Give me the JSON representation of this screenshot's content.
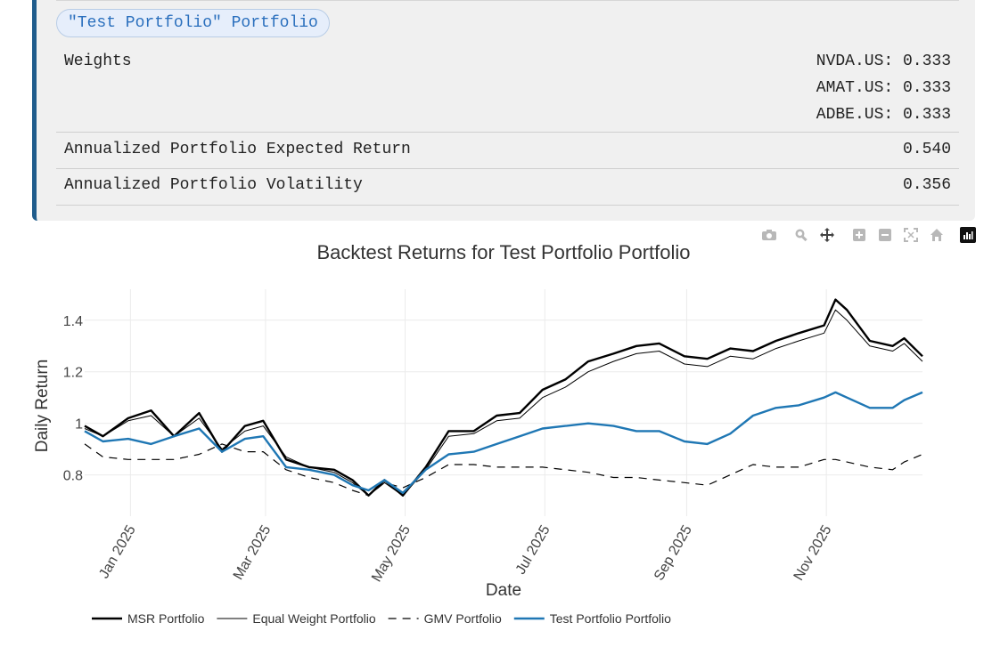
{
  "portfolio_card": {
    "name_badge": "\"Test Portfolio\" Portfolio",
    "weights_label": "Weights",
    "weights": [
      "NVDA.US: 0.333",
      "AMAT.US: 0.333",
      "ADBE.US: 0.333"
    ],
    "expected_return_label": "Annualized Portfolio Expected Return",
    "expected_return_value": "0.540",
    "volatility_label": "Annualized Portfolio Volatility",
    "volatility_value": "0.356"
  },
  "modebar_icons": [
    "camera-icon",
    "zoom-icon",
    "pan-icon",
    "zoom-in-icon",
    "zoom-out-icon",
    "autoscale-icon",
    "reset-axes-icon",
    "plotly-logo-icon"
  ],
  "chart_data": {
    "type": "line",
    "title": "Backtest Returns for Test Portfolio Portfolio",
    "xlabel": "Date",
    "ylabel": "Daily Return",
    "xticks": [
      "Jan 2025",
      "Mar 2025",
      "May 2025",
      "Jul 2025",
      "Sep 2025",
      "Nov 2025"
    ],
    "xtick_dates": [
      "2025-01-01",
      "2025-03-01",
      "2025-05-01",
      "2025-07-01",
      "2025-09-01",
      "2025-11-01"
    ],
    "xlim": [
      "2024-12-12",
      "2025-12-13"
    ],
    "yticks": [
      "0.8",
      "1",
      "1.2",
      "1.4"
    ],
    "ytick_values": [
      0.8,
      1.0,
      1.2,
      1.4
    ],
    "ylim": [
      0.64,
      1.52
    ],
    "grid": true,
    "legend_position": "bottom",
    "x": [
      "2024-12-12",
      "2024-12-20",
      "2024-12-31",
      "2025-01-10",
      "2025-01-20",
      "2025-01-31",
      "2025-02-10",
      "2025-02-20",
      "2025-02-28",
      "2025-03-10",
      "2025-03-20",
      "2025-03-31",
      "2025-04-08",
      "2025-04-15",
      "2025-04-22",
      "2025-04-30",
      "2025-05-10",
      "2025-05-20",
      "2025-05-31",
      "2025-06-10",
      "2025-06-20",
      "2025-06-30",
      "2025-07-10",
      "2025-07-20",
      "2025-07-31",
      "2025-08-10",
      "2025-08-20",
      "2025-08-31",
      "2025-09-10",
      "2025-09-20",
      "2025-09-30",
      "2025-10-10",
      "2025-10-20",
      "2025-10-31",
      "2025-11-05",
      "2025-11-10",
      "2025-11-20",
      "2025-11-30",
      "2025-12-05",
      "2025-12-13"
    ],
    "series": [
      {
        "name": "MSR Portfolio",
        "color": "#000000",
        "dash": "solid",
        "width": 2.4,
        "values": [
          0.99,
          0.95,
          1.02,
          1.05,
          0.95,
          1.04,
          0.89,
          0.99,
          1.01,
          0.86,
          0.83,
          0.82,
          0.78,
          0.72,
          0.78,
          0.72,
          0.83,
          0.97,
          0.97,
          1.03,
          1.04,
          1.13,
          1.17,
          1.24,
          1.27,
          1.3,
          1.31,
          1.26,
          1.25,
          1.29,
          1.28,
          1.32,
          1.35,
          1.38,
          1.48,
          1.44,
          1.32,
          1.3,
          1.33,
          1.26
        ]
      },
      {
        "name": "Equal Weight Portfolio",
        "color": "#000000",
        "dash": "solid",
        "width": 1.0,
        "values": [
          0.98,
          0.95,
          1.01,
          1.03,
          0.95,
          1.02,
          0.9,
          0.97,
          0.99,
          0.87,
          0.83,
          0.81,
          0.77,
          0.72,
          0.77,
          0.72,
          0.82,
          0.95,
          0.96,
          1.01,
          1.02,
          1.1,
          1.14,
          1.2,
          1.24,
          1.27,
          1.28,
          1.23,
          1.22,
          1.26,
          1.25,
          1.29,
          1.32,
          1.35,
          1.44,
          1.4,
          1.3,
          1.28,
          1.31,
          1.24
        ]
      },
      {
        "name": "GMV Portfolio",
        "color": "#000000",
        "dash": "dash",
        "width": 1.2,
        "values": [
          0.92,
          0.87,
          0.86,
          0.86,
          0.86,
          0.88,
          0.92,
          0.89,
          0.89,
          0.82,
          0.79,
          0.77,
          0.74,
          0.72,
          0.77,
          0.75,
          0.79,
          0.84,
          0.84,
          0.83,
          0.83,
          0.83,
          0.82,
          0.81,
          0.79,
          0.79,
          0.78,
          0.77,
          0.76,
          0.8,
          0.84,
          0.83,
          0.83,
          0.86,
          0.86,
          0.85,
          0.83,
          0.82,
          0.85,
          0.88
        ]
      },
      {
        "name": "Test Portfolio Portfolio",
        "color": "#1f77b4",
        "dash": "solid",
        "width": 2.4,
        "values": [
          0.97,
          0.93,
          0.94,
          0.92,
          0.95,
          0.98,
          0.89,
          0.94,
          0.95,
          0.83,
          0.82,
          0.8,
          0.76,
          0.74,
          0.78,
          0.73,
          0.82,
          0.88,
          0.89,
          0.92,
          0.95,
          0.98,
          0.99,
          1.0,
          0.99,
          0.97,
          0.97,
          0.93,
          0.92,
          0.96,
          1.03,
          1.06,
          1.07,
          1.1,
          1.12,
          1.1,
          1.06,
          1.06,
          1.09,
          1.12
        ]
      }
    ]
  }
}
